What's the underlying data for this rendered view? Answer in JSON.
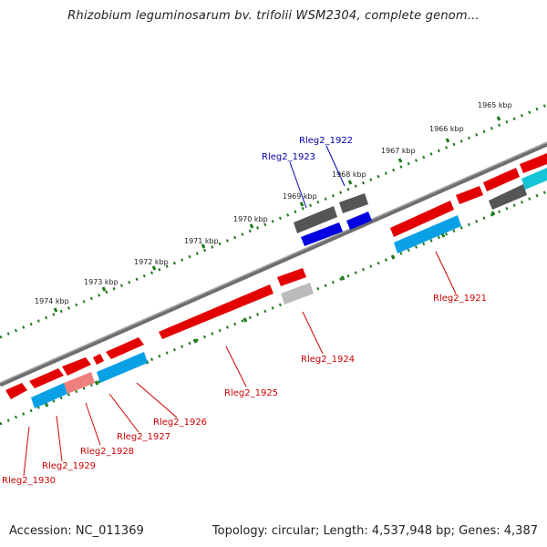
{
  "title": "Rhizobium leguminosarum bv. trifolii WSM2304, complete genom...",
  "footer": {
    "accession": "Accession: NC_011369",
    "summary": "Topology: circular; Length: 4,537,948 bp; Genes: 4,387"
  },
  "colors": {
    "forward_gene": "#e30000",
    "reverse_gene": "#0a99e0",
    "highlight_blue": "#0000e0",
    "pseudo_gray": "#555555",
    "light_gray": "#bbbbbb",
    "tick_green": "#1a7a1a",
    "backbone": "#707070",
    "label_red": "#cc0000",
    "label_blue": "#0000aa"
  },
  "scale_ticks": [
    {
      "label": "1965 kbp"
    },
    {
      "label": "1966 kbp"
    },
    {
      "label": "1967 kbp"
    },
    {
      "label": "1968 kbp"
    },
    {
      "label": "1969 kbp"
    },
    {
      "label": "1970 kbp"
    },
    {
      "label": "1971 kbp"
    },
    {
      "label": "1972 kbp"
    },
    {
      "label": "1973 kbp"
    },
    {
      "label": "1974 kbp"
    }
  ],
  "gene_labels": [
    {
      "name": "Rleg2_1922",
      "color": "blue"
    },
    {
      "name": "Rleg2_1923",
      "color": "blue"
    },
    {
      "name": "Rleg2_1921",
      "color": "red"
    },
    {
      "name": "Rleg2_1924",
      "color": "red"
    },
    {
      "name": "Rleg2_1925",
      "color": "red"
    },
    {
      "name": "Rleg2_1926",
      "color": "red"
    },
    {
      "name": "Rleg2_1927",
      "color": "red"
    },
    {
      "name": "Rleg2_1928",
      "color": "red"
    },
    {
      "name": "Rleg2_1929",
      "color": "red"
    },
    {
      "name": "Rleg2_1930",
      "color": "red"
    }
  ]
}
